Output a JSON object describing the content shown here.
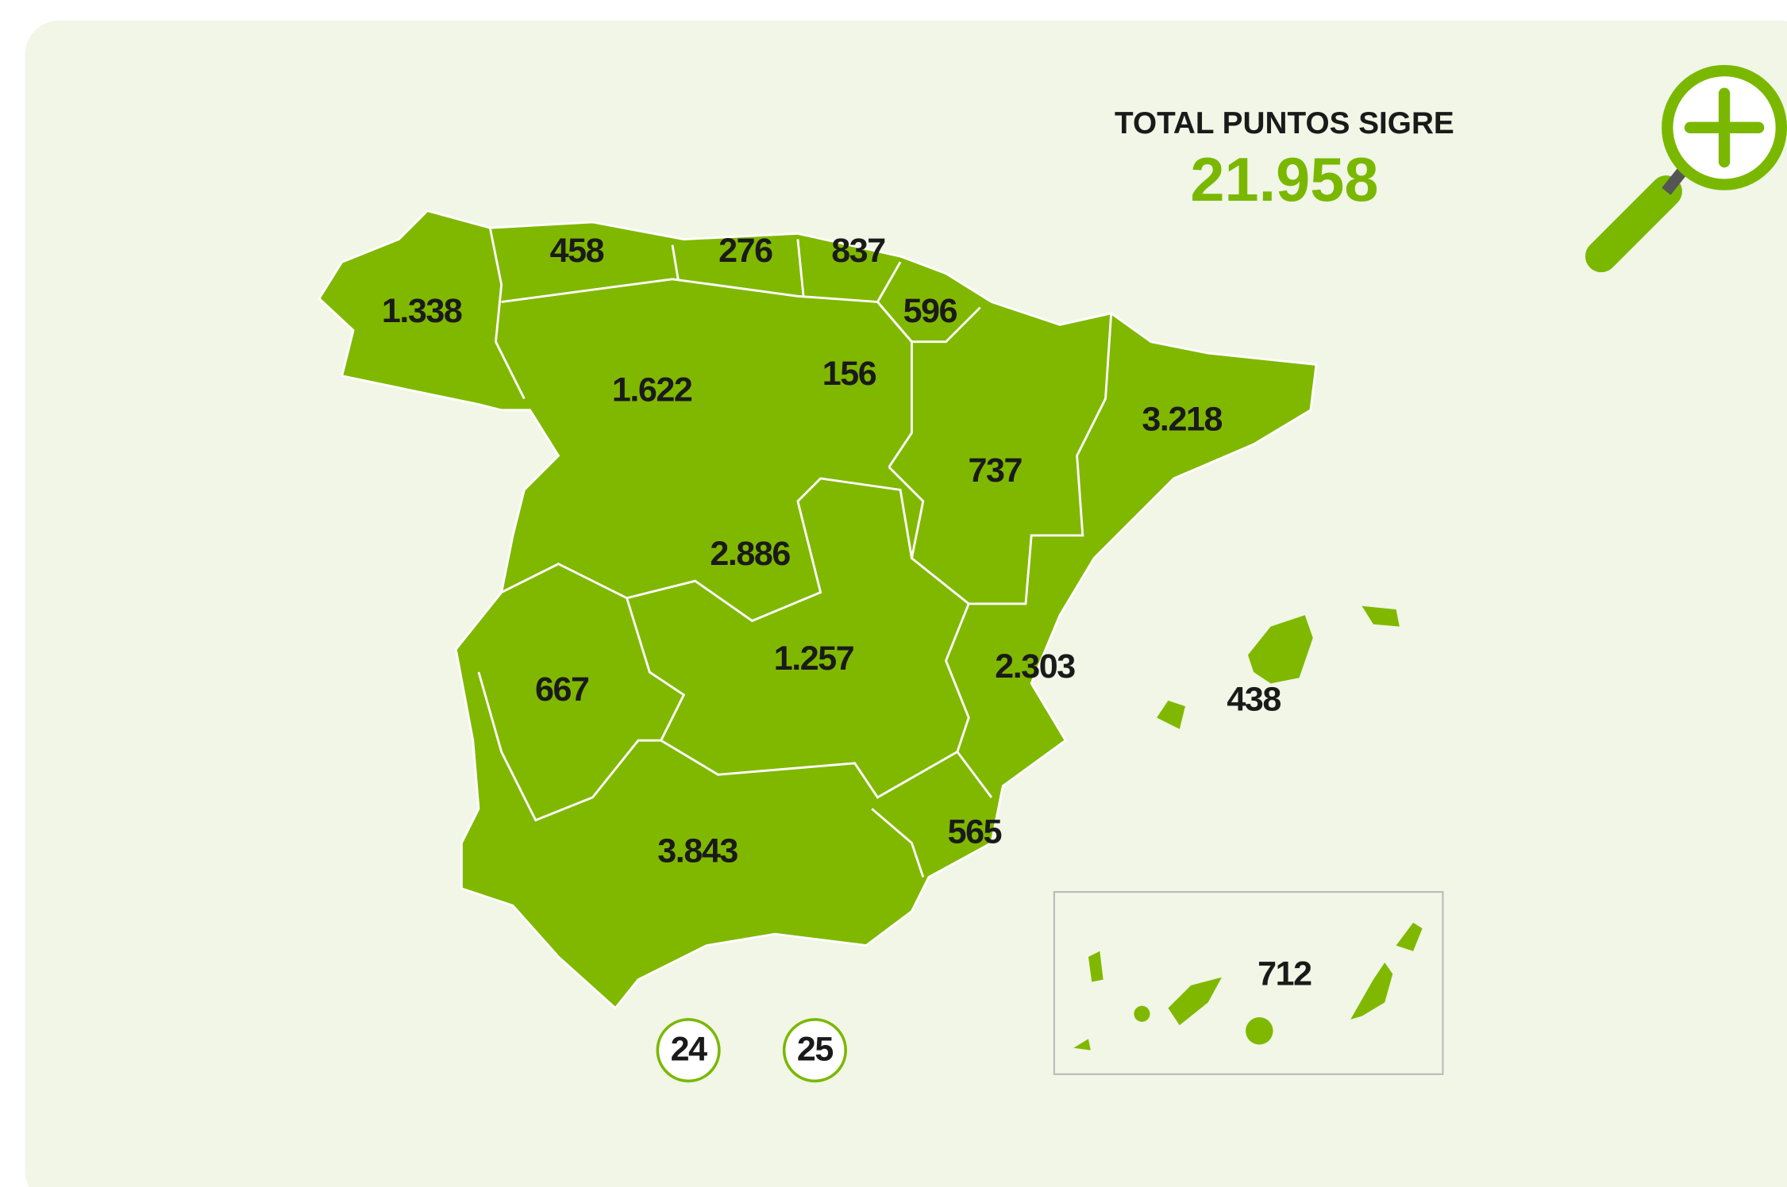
{
  "header": {
    "title": "TOTAL PUNTOS SIGRE",
    "total": "21.958"
  },
  "regions": [
    {
      "label": "1.338"
    },
    {
      "label": "458"
    },
    {
      "label": "276"
    },
    {
      "label": "837"
    },
    {
      "label": "596"
    },
    {
      "label": "156"
    },
    {
      "label": "1.622"
    },
    {
      "label": "3.218"
    },
    {
      "label": "737"
    },
    {
      "label": "2.886"
    },
    {
      "label": "1.257"
    },
    {
      "label": "2.303"
    },
    {
      "label": "667"
    },
    {
      "label": "438"
    },
    {
      "label": "565"
    },
    {
      "label": "3.843"
    },
    {
      "label": "712"
    }
  ],
  "cities": [
    {
      "label": "24"
    },
    {
      "label": "25"
    }
  ]
}
